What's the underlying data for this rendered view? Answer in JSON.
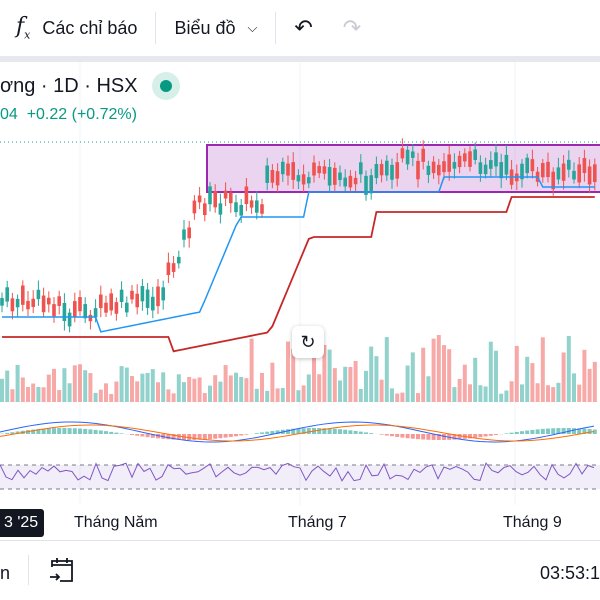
{
  "toolbar": {
    "indicators_label": "Các chỉ báo",
    "chart_label": "Biểu đồ",
    "icons": [
      "function-icon",
      "chevron-down-icon",
      "undo-icon",
      "redo-icon"
    ]
  },
  "legend": {
    "symbol": "ơng · 1D · HSX",
    "price_fragment": "04",
    "change": "+0.22 (+0.72%)",
    "status": "market-open"
  },
  "time_axis": {
    "current": "3 '25",
    "labels": [
      "Tháng Năm",
      "Tháng 7",
      "Tháng 9"
    ]
  },
  "bottom": {
    "left_fragment": "n",
    "time": "03:53:1"
  },
  "colors": {
    "up": "#26a69a",
    "down": "#ef5350",
    "rect": "#9c27b0",
    "ma_blue": "#2196f3",
    "ma_red": "#c62828"
  }
}
